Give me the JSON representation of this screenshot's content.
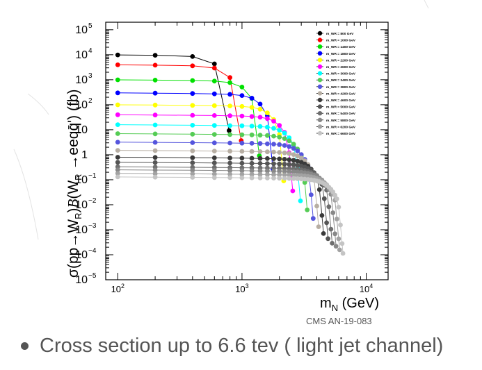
{
  "slide": {
    "source_label": "CMS AN-19-083",
    "bullet": "Cross section up to 6.6 tev ( light jet channel)"
  },
  "chart_data": {
    "type": "scatter",
    "title": "",
    "xlabel": "m_N (GeV)",
    "ylabel": "σ(pp→W_R)B(W_R→eeqq̄') (fb)",
    "xscale": "log",
    "yscale": "log",
    "xlim": [
      80,
      15000
    ],
    "ylim": [
      1e-05,
      200000
    ],
    "x_tick_labels": [
      {
        "value": 100,
        "base": "10",
        "exp": "2"
      },
      {
        "value": 1000,
        "base": "10",
        "exp": "3"
      },
      {
        "value": 10000,
        "base": "10",
        "exp": "4"
      }
    ],
    "y_tick_labels": [
      {
        "value": 100000,
        "base": "10",
        "exp": "5"
      },
      {
        "value": 10000,
        "base": "10",
        "exp": "4"
      },
      {
        "value": 1000,
        "base": "10",
        "exp": "3"
      },
      {
        "value": 100,
        "base": "10",
        "exp": "2"
      },
      {
        "value": 10,
        "base": "10",
        "exp": ""
      },
      {
        "value": 1,
        "base": "1",
        "exp": ""
      },
      {
        "value": 0.1,
        "base": "10",
        "exp": "−1"
      },
      {
        "value": 0.01,
        "base": "10",
        "exp": "−2"
      },
      {
        "value": 0.001,
        "base": "10",
        "exp": "−3"
      },
      {
        "value": 0.0001,
        "base": "10",
        "exp": "−4"
      },
      {
        "value": 1e-05,
        "base": "10",
        "exp": "−5"
      }
    ],
    "legend_position": "top-right",
    "series": [
      {
        "name": "m_WR = 800 GeV",
        "mwr": 800,
        "color": "#000000",
        "norm": 10000
      },
      {
        "name": "m_WR = 1000 GeV",
        "mwr": 1000,
        "color": "#ff0000",
        "norm": 4000
      },
      {
        "name": "m_WR = 1400 GeV",
        "mwr": 1400,
        "color": "#00e000",
        "norm": 1000
      },
      {
        "name": "m_WR = 1800 GeV",
        "mwr": 1800,
        "color": "#0000ff",
        "norm": 300
      },
      {
        "name": "m_WR = 2200 GeV",
        "mwr": 2200,
        "color": "#ffff00",
        "norm": 100
      },
      {
        "name": "m_WR = 2600 GeV",
        "mwr": 2600,
        "color": "#ff00ff",
        "norm": 40
      },
      {
        "name": "m_WR = 3000 GeV",
        "mwr": 3000,
        "color": "#00ffff",
        "norm": 16
      },
      {
        "name": "m_WR = 3400 GeV",
        "mwr": 3400,
        "color": "#55cc55",
        "norm": 7
      },
      {
        "name": "m_WR = 3800 GeV",
        "mwr": 3800,
        "color": "#5555dd",
        "norm": 3.2
      },
      {
        "name": "m_WR = 4200 GeV",
        "mwr": 4200,
        "color": "#b7aea3",
        "norm": 1.5
      },
      {
        "name": "m_WR = 4600 GeV",
        "mwr": 4600,
        "color": "#3a3a3a",
        "norm": 0.8
      },
      {
        "name": "m_WR = 5000 GeV",
        "mwr": 5000,
        "color": "#555555",
        "norm": 0.5
      },
      {
        "name": "m_WR = 5400 GeV",
        "mwr": 5400,
        "color": "#6e6e6e",
        "norm": 0.33
      },
      {
        "name": "m_WR = 5800 GeV",
        "mwr": 5800,
        "color": "#888888",
        "norm": 0.25
      },
      {
        "name": "m_WR = 6200 GeV",
        "mwr": 6200,
        "color": "#a2a2a2",
        "norm": 0.18
      },
      {
        "name": "m_WR = 6600 GeV",
        "mwr": 6600,
        "color": "#c4c4c4",
        "norm": 0.13
      }
    ]
  }
}
